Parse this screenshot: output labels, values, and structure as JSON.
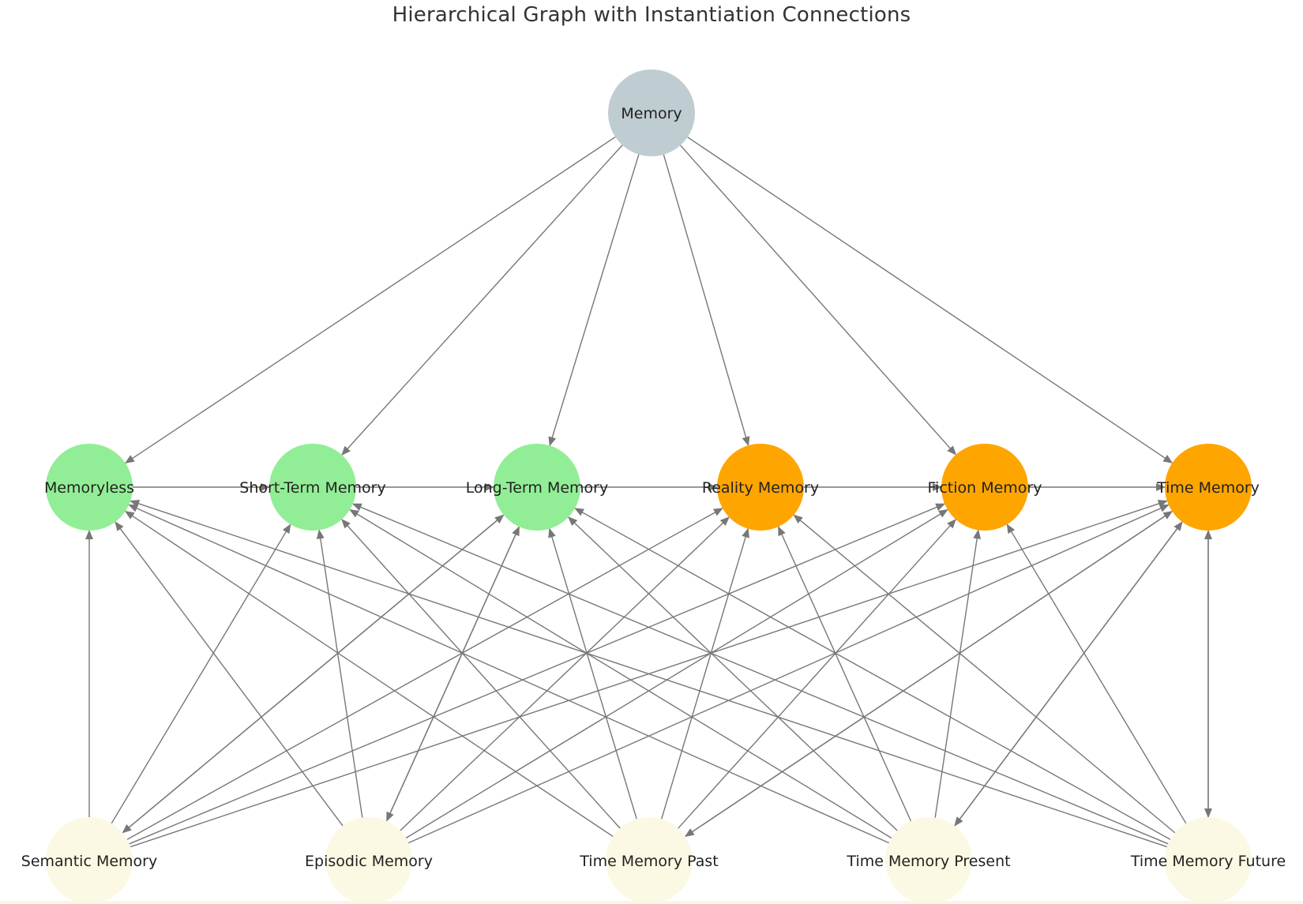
{
  "title": "Hierarchical Graph with Instantiation Connections",
  "colors": {
    "root": "#bfccd1",
    "green": "#92ee96",
    "orange": "#ffa500",
    "cream": "#fbf9e3",
    "edge": "#777777",
    "text": "#222222"
  },
  "nodes": [
    {
      "id": "memory",
      "label": "Memory",
      "level": 0,
      "color": "root"
    },
    {
      "id": "memoryless",
      "label": "Memoryless",
      "level": 1,
      "color": "green"
    },
    {
      "id": "short",
      "label": "Short-Term Memory",
      "level": 1,
      "color": "green"
    },
    {
      "id": "long",
      "label": "Long-Term Memory",
      "level": 1,
      "color": "green"
    },
    {
      "id": "reality",
      "label": "Reality Memory",
      "level": 1,
      "color": "orange"
    },
    {
      "id": "fiction",
      "label": "Fiction Memory",
      "level": 1,
      "color": "orange"
    },
    {
      "id": "time",
      "label": "Time Memory",
      "level": 1,
      "color": "orange"
    },
    {
      "id": "semantic",
      "label": "Semantic Memory",
      "level": 2,
      "color": "cream"
    },
    {
      "id": "episodic",
      "label": "Episodic Memory",
      "level": 2,
      "color": "cream"
    },
    {
      "id": "past",
      "label": "Time Memory Past",
      "level": 2,
      "color": "cream"
    },
    {
      "id": "present",
      "label": "Time Memory Present",
      "level": 2,
      "color": "cream"
    },
    {
      "id": "future",
      "label": "Time Memory Future",
      "level": 2,
      "color": "cream"
    }
  ],
  "edges": [
    [
      "memory",
      "memoryless"
    ],
    [
      "memory",
      "short"
    ],
    [
      "memory",
      "long"
    ],
    [
      "memory",
      "reality"
    ],
    [
      "memory",
      "fiction"
    ],
    [
      "memory",
      "time"
    ],
    [
      "memoryless",
      "short"
    ],
    [
      "short",
      "long"
    ],
    [
      "long",
      "reality"
    ],
    [
      "reality",
      "fiction"
    ],
    [
      "fiction",
      "time"
    ],
    [
      "semantic",
      "memoryless"
    ],
    [
      "semantic",
      "short"
    ],
    [
      "semantic",
      "long"
    ],
    [
      "semantic",
      "reality"
    ],
    [
      "semantic",
      "fiction"
    ],
    [
      "semantic",
      "time"
    ],
    [
      "episodic",
      "memoryless"
    ],
    [
      "episodic",
      "short"
    ],
    [
      "episodic",
      "long"
    ],
    [
      "episodic",
      "reality"
    ],
    [
      "episodic",
      "fiction"
    ],
    [
      "episodic",
      "time"
    ],
    [
      "past",
      "memoryless"
    ],
    [
      "past",
      "short"
    ],
    [
      "past",
      "long"
    ],
    [
      "past",
      "reality"
    ],
    [
      "past",
      "fiction"
    ],
    [
      "past",
      "time"
    ],
    [
      "present",
      "memoryless"
    ],
    [
      "present",
      "short"
    ],
    [
      "present",
      "long"
    ],
    [
      "present",
      "reality"
    ],
    [
      "present",
      "fiction"
    ],
    [
      "present",
      "time"
    ],
    [
      "future",
      "memoryless"
    ],
    [
      "future",
      "short"
    ],
    [
      "future",
      "long"
    ],
    [
      "future",
      "reality"
    ],
    [
      "future",
      "fiction"
    ],
    [
      "future",
      "time"
    ],
    [
      "long",
      "semantic"
    ],
    [
      "long",
      "episodic"
    ],
    [
      "time",
      "past"
    ],
    [
      "time",
      "present"
    ],
    [
      "time",
      "future"
    ]
  ]
}
